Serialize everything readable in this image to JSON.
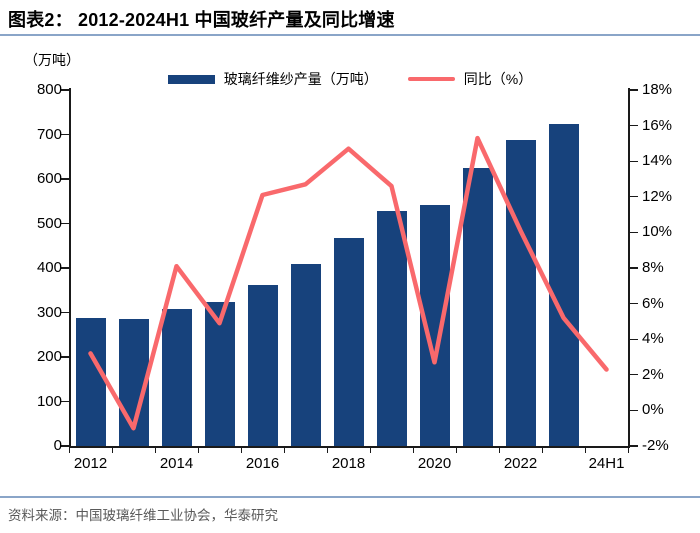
{
  "header": {
    "title": "图表2：  2012-2024H1 中国玻纤产量及同比增速"
  },
  "footer": {
    "source": "资料来源：中国玻璃纤维工业协会，华泰研究"
  },
  "colors": {
    "bar": "#17427c",
    "line": "#f9696c",
    "rule": "#8aa5c8",
    "axis": "#1a1a1a",
    "footer_text": "#595959"
  },
  "chart_data": {
    "type": "bar+line",
    "title": "2012-2024H1 中国玻纤产量及同比增速",
    "categories": [
      "2012",
      "2013",
      "2014",
      "2015",
      "2016",
      "2017",
      "2018",
      "2019",
      "2020",
      "2021",
      "2022",
      "2023",
      "24H1"
    ],
    "series": [
      {
        "name": "玻璃纤维纱产量（万吨）",
        "type": "bar",
        "axis": "left",
        "color": "#17427c",
        "values": [
          288,
          285,
          308,
          323,
          362,
          408,
          468,
          527,
          541,
          624,
          687,
          723,
          null
        ]
      },
      {
        "name": "同比（%）",
        "type": "line",
        "axis": "right",
        "color": "#f9696c",
        "values": [
          3.2,
          -1.0,
          8.1,
          4.9,
          12.1,
          12.7,
          14.7,
          12.6,
          2.7,
          15.3,
          10.1,
          5.2,
          2.3
        ]
      }
    ],
    "left_axis": {
      "unit_label": "（万吨）",
      "min": 0,
      "max": 800,
      "step": 100
    },
    "right_axis": {
      "min": -2,
      "max": 18,
      "step": 2,
      "suffix": "%"
    },
    "x_ticks_shown": [
      {
        "index": 0,
        "label": "2012"
      },
      {
        "index": 2,
        "label": "2014"
      },
      {
        "index": 4,
        "label": "2016"
      },
      {
        "index": 6,
        "label": "2018"
      },
      {
        "index": 8,
        "label": "2020"
      },
      {
        "index": 10,
        "label": "2022"
      },
      {
        "index": 12,
        "label": "24H1"
      }
    ],
    "grid": false,
    "legend_position": "top-center"
  }
}
